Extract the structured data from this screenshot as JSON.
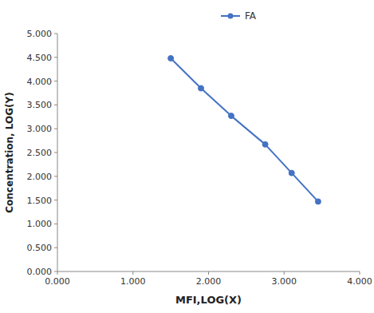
{
  "chart_data": {
    "type": "line",
    "x": [
      1.5,
      1.9,
      2.3,
      2.75,
      3.1,
      3.45
    ],
    "series": [
      {
        "name": "FA",
        "color": "#4472C4",
        "marker": "circle",
        "values": [
          4.48,
          3.85,
          3.27,
          2.67,
          2.07,
          1.47
        ]
      }
    ],
    "xlabel": "MFI,LOG(X)",
    "ylabel": "Concentration, LOG(Y)",
    "xlim": [
      0.0,
      4.0
    ],
    "ylim": [
      0.0,
      5.0
    ],
    "xticks": [
      {
        "value": 0.0,
        "label": "0.000"
      },
      {
        "value": 1.0,
        "label": "1.000"
      },
      {
        "value": 2.0,
        "label": "2.000"
      },
      {
        "value": 3.0,
        "label": "3.000"
      },
      {
        "value": 4.0,
        "label": "4.000"
      }
    ],
    "yticks": [
      {
        "value": 0.0,
        "label": "0.000"
      },
      {
        "value": 0.5,
        "label": "0.500"
      },
      {
        "value": 1.0,
        "label": "1.000"
      },
      {
        "value": 1.5,
        "label": "1.500"
      },
      {
        "value": 2.0,
        "label": "2.000"
      },
      {
        "value": 2.5,
        "label": "2.500"
      },
      {
        "value": 3.0,
        "label": "3.000"
      },
      {
        "value": 3.5,
        "label": "3.500"
      },
      {
        "value": 4.0,
        "label": "4.000"
      },
      {
        "value": 4.5,
        "label": "4.500"
      },
      {
        "value": 5.0,
        "label": "5.000"
      }
    ],
    "grid": false,
    "legend": "top"
  }
}
